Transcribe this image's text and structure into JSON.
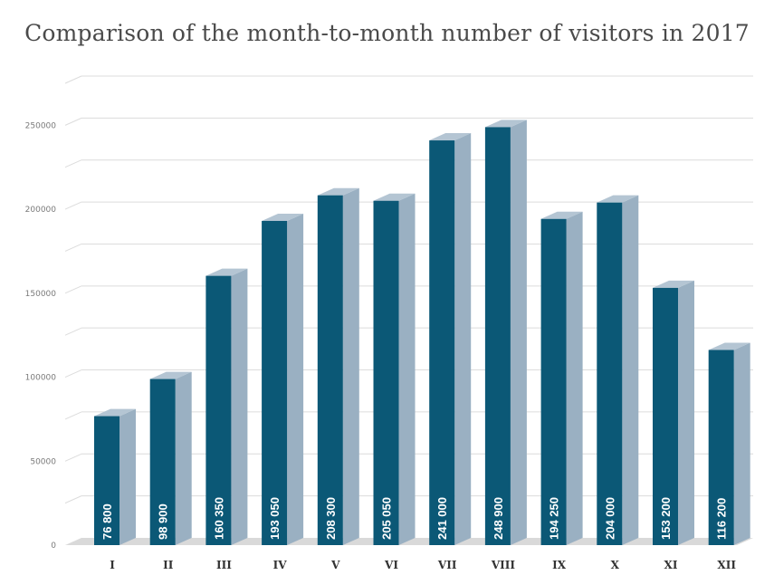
{
  "chart_data": {
    "type": "bar",
    "title": "Comparison of the month-to-month number of visitors in 2017",
    "xlabel": "",
    "ylabel": "",
    "categories": [
      "I",
      "II",
      "III",
      "IV",
      "V",
      "VI",
      "VII",
      "VIII",
      "IX",
      "X",
      "XI",
      "XII"
    ],
    "values": [
      76800,
      98900,
      160350,
      193050,
      208300,
      205050,
      241000,
      248900,
      194250,
      204000,
      153200,
      116200
    ],
    "value_labels": [
      "76 800",
      "98 900",
      "160 350",
      "193 050",
      "208 300",
      "205 050",
      "241 000",
      "248 900",
      "194 250",
      "204 000",
      "153 200",
      "116 200"
    ],
    "y_ticks": [
      0,
      50000,
      100000,
      150000,
      200000,
      250000
    ],
    "y_tick_labels": [
      "0",
      "50000",
      "100000",
      "150000",
      "200000",
      "250000"
    ],
    "ylim": [
      0,
      275000
    ],
    "grid": true,
    "legend": "none",
    "style": "3d-columns"
  },
  "colors": {
    "bar_front": "#0b5876",
    "bar_side": "#9ab0c2",
    "bar_top": "#b4c5d3",
    "grid": "#dcdcdc",
    "floor": "#d9d9d9"
  }
}
